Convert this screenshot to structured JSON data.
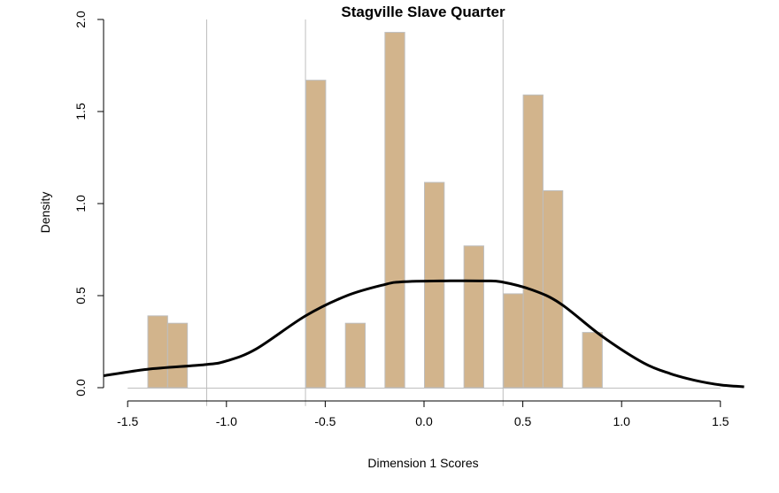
{
  "chart_data": {
    "type": "bar",
    "title": "Stagville Slave Quarter",
    "xlabel": "Dimension 1 Scores",
    "ylabel": "Density",
    "xlim": [
      -1.62,
      1.62
    ],
    "ylim": [
      0,
      2.0
    ],
    "x_ticks": [
      "-1.5",
      "-1.0",
      "-0.5",
      "0.0",
      "0.5",
      "1.0",
      "1.5"
    ],
    "x_tick_values": [
      -1.5,
      -1.0,
      -0.5,
      0.0,
      0.5,
      1.0,
      1.5
    ],
    "y_ticks": [
      "0.0",
      "0.5",
      "1.0",
      "1.5",
      "2.0"
    ],
    "y_tick_values": [
      0,
      0.5,
      1.0,
      1.5,
      2.0
    ],
    "bin_width": 0.1,
    "histogram_range": [
      -1.5,
      1.5
    ],
    "bars": [
      {
        "start": -1.4,
        "density": 0.39
      },
      {
        "start": -1.3,
        "density": 0.35
      },
      {
        "start": -0.6,
        "density": 1.67
      },
      {
        "start": -0.4,
        "density": 0.35
      },
      {
        "start": -0.2,
        "density": 1.93
      },
      {
        "start": 0.0,
        "density": 1.115
      },
      {
        "start": 0.2,
        "density": 0.77
      },
      {
        "start": 0.4,
        "density": 0.51
      },
      {
        "start": 0.5,
        "density": 1.59
      },
      {
        "start": 0.6,
        "density": 1.07
      },
      {
        "start": 0.8,
        "density": 0.3
      }
    ],
    "vertical_lines": [
      -1.1,
      -0.6,
      0.4
    ],
    "density_curve": {
      "x": [
        -1.62,
        -1.4,
        -1.11,
        -1.0,
        -0.85,
        -0.6,
        -0.39,
        -0.2,
        -0.11,
        0.1,
        0.3,
        0.39,
        0.55,
        0.69,
        0.9,
        1.11,
        1.25,
        1.37,
        1.5,
        1.62
      ],
      "y": [
        0.065,
        0.1,
        0.125,
        0.145,
        0.21,
        0.39,
        0.5,
        0.56,
        0.575,
        0.58,
        0.58,
        0.575,
        0.53,
        0.457,
        0.28,
        0.135,
        0.075,
        0.04,
        0.015,
        0.005
      ]
    },
    "colors": {
      "bar": "#D2B48C",
      "bar_border": "#BEBEBE",
      "curve": "#000000",
      "vline": "#BEBEBE"
    }
  }
}
